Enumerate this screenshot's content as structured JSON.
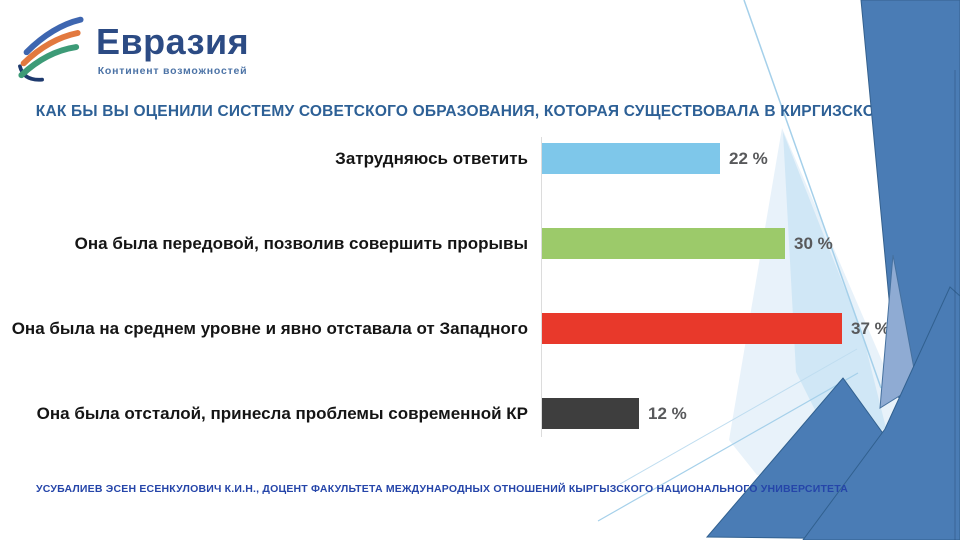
{
  "logo": {
    "name": "Евразия",
    "tagline": "Континент возможностей"
  },
  "header": {
    "title": "КАК БЫ ВЫ ОЦЕНИЛИ СИСТЕМУ СОВЕТСКОГО ОБРАЗОВАНИЯ, КОТОРАЯ СУЩЕСТВОВАЛА В КИРГИЗСКОЙ ССР"
  },
  "chart_data": {
    "type": "bar",
    "orientation": "horizontal",
    "title": "КАК БЫ ВЫ ОЦЕНИЛИ СИСТЕМУ СОВЕТСКОГО ОБРАЗОВАНИЯ, КОТОРАЯ СУЩЕСТВОВАЛА В КИРГИЗСКОЙ ССР",
    "categories": [
      "Затрудняюсь ответить",
      "Она была передовой, позволив совершить прорывы",
      "Она была на среднем уровне и явно отставала от Западного",
      "Она была отсталой, принесла проблемы современной КР"
    ],
    "values": [
      22,
      30,
      37,
      12
    ],
    "unit": "%",
    "value_labels": [
      "22 %",
      "30 %",
      "37 %",
      "12 %"
    ],
    "bar_colors": [
      "#7ec7ea",
      "#9cca6a",
      "#e8392b",
      "#3e3e3e"
    ],
    "xlim": [
      0,
      40
    ],
    "grid": false,
    "legend": false,
    "value_label_color": "#58595b",
    "category_label_color": "#151515"
  },
  "footer": {
    "credit": "УСУБАЛИЕВ ЭСЕН ЕСЕНКУЛОВИЧ К.И.Н., ДОЦЕНТ ФАКУЛЬТЕТА МЕЖДУНАРОДНЫХ ОТНОШЕНИЙ КЫРГЫЗСКОГО НАЦИОНАЛЬНОГО УНИВЕРСИТЕТА",
    "credit_color": "#2545a9"
  },
  "theme": {
    "accent_blue": "#4a7cb5",
    "accent_blue_light": "#8fabd3",
    "accent_pale": "#cbe5f5",
    "title_color": "#2d6096",
    "logo_blue": "#3e66b0",
    "logo_orange": "#e2793f",
    "logo_green": "#3d9b77",
    "logo_navy": "#1e3a6e"
  }
}
